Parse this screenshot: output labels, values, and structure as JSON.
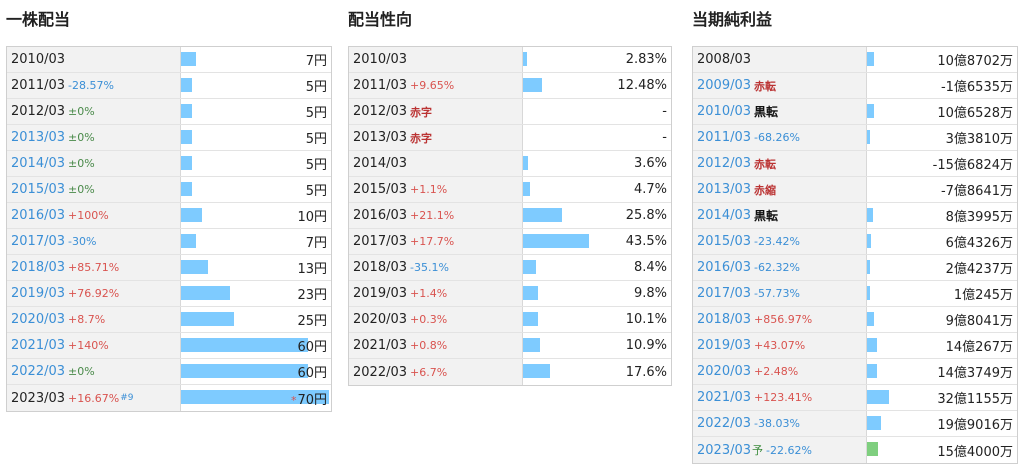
{
  "dividend": {
    "title": "一株配当",
    "max": 70,
    "rows": [
      {
        "year": "2010/03",
        "change": "",
        "dir": "",
        "value": "7円",
        "num": 7
      },
      {
        "year": "2011/03",
        "change": "-28.57%",
        "dir": "down",
        "value": "5円",
        "num": 5
      },
      {
        "year": "2012/03",
        "change": "±0%",
        "dir": "flat",
        "value": "5円",
        "num": 5
      },
      {
        "year": "2013/03",
        "change": "±0%",
        "dir": "flat",
        "value": "5円",
        "num": 5
      },
      {
        "year": "2014/03",
        "change": "±0%",
        "dir": "flat",
        "value": "5円",
        "num": 5
      },
      {
        "year": "2015/03",
        "change": "±0%",
        "dir": "flat",
        "value": "5円",
        "num": 5
      },
      {
        "year": "2016/03",
        "change": "+100%",
        "dir": "up",
        "value": "10円",
        "num": 10
      },
      {
        "year": "2017/03",
        "change": "-30%",
        "dir": "down",
        "value": "7円",
        "num": 7
      },
      {
        "year": "2018/03",
        "change": "+85.71%",
        "dir": "up",
        "value": "13円",
        "num": 13
      },
      {
        "year": "2019/03",
        "change": "+76.92%",
        "dir": "up",
        "value": "23円",
        "num": 23
      },
      {
        "year": "2020/03",
        "change": "+8.7%",
        "dir": "up",
        "value": "25円",
        "num": 25
      },
      {
        "year": "2021/03",
        "change": "+140%",
        "dir": "up",
        "value": "60円",
        "num": 60
      },
      {
        "year": "2022/03",
        "change": "±0%",
        "dir": "flat",
        "value": "60円",
        "num": 60
      },
      {
        "year": "2023/03",
        "change": "+16.67%",
        "dir": "up",
        "note": "#9",
        "star": "*",
        "value": "70円",
        "num": 70
      }
    ]
  },
  "payout": {
    "title": "配当性向",
    "max": 43.5,
    "rows": [
      {
        "year": "2010/03",
        "change": "",
        "dir": "",
        "value": "2.83%",
        "num": 2.83
      },
      {
        "year": "2011/03",
        "change": "+9.65%",
        "dir": "up",
        "value": "12.48%",
        "num": 12.48
      },
      {
        "year": "2012/03",
        "tag": "赤字",
        "tagColor": "red",
        "value": "-",
        "num": 0
      },
      {
        "year": "2013/03",
        "tag": "赤字",
        "tagColor": "red",
        "value": "-",
        "num": 0
      },
      {
        "year": "2014/03",
        "change": "",
        "dir": "",
        "value": "3.6%",
        "num": 3.6
      },
      {
        "year": "2015/03",
        "change": "+1.1%",
        "dir": "up",
        "value": "4.7%",
        "num": 4.7
      },
      {
        "year": "2016/03",
        "change": "+21.1%",
        "dir": "up",
        "value": "25.8%",
        "num": 25.8
      },
      {
        "year": "2017/03",
        "change": "+17.7%",
        "dir": "up",
        "value": "43.5%",
        "num": 43.5
      },
      {
        "year": "2018/03",
        "change": "-35.1%",
        "dir": "down",
        "value": "8.4%",
        "num": 8.4
      },
      {
        "year": "2019/03",
        "change": "+1.4%",
        "dir": "up",
        "value": "9.8%",
        "num": 9.8
      },
      {
        "year": "2020/03",
        "change": "+0.3%",
        "dir": "up",
        "value": "10.1%",
        "num": 10.1
      },
      {
        "year": "2021/03",
        "change": "+0.8%",
        "dir": "up",
        "value": "10.9%",
        "num": 10.9
      },
      {
        "year": "2022/03",
        "change": "+6.7%",
        "dir": "up",
        "value": "17.6%",
        "num": 17.6
      }
    ]
  },
  "net_income": {
    "title": "当期純利益",
    "max": 320000,
    "rows": [
      {
        "year": "2008/03",
        "blue": false,
        "value": "10億8702万",
        "num": 108702
      },
      {
        "year": "2009/03",
        "blue": true,
        "tag": "赤転",
        "tagColor": "red",
        "value": "-1億6535万",
        "num": 0
      },
      {
        "year": "2010/03",
        "blue": true,
        "tag": "黒転",
        "tagColor": "black",
        "value": "10億6528万",
        "num": 106528
      },
      {
        "year": "2011/03",
        "blue": true,
        "change": "-68.26%",
        "dir": "down",
        "value": "3億3810万",
        "num": 33810
      },
      {
        "year": "2012/03",
        "blue": true,
        "tag": "赤転",
        "tagColor": "red",
        "value": "-15億6824万",
        "num": 0
      },
      {
        "year": "2013/03",
        "blue": true,
        "tag": "赤縮",
        "tagColor": "red",
        "value": "-7億8641万",
        "num": 0
      },
      {
        "year": "2014/03",
        "blue": true,
        "tag": "黒転",
        "tagColor": "black",
        "value": "8億3995万",
        "num": 83995
      },
      {
        "year": "2015/03",
        "blue": true,
        "change": "-23.42%",
        "dir": "down",
        "value": "6億4326万",
        "num": 64326
      },
      {
        "year": "2016/03",
        "blue": true,
        "change": "-62.32%",
        "dir": "down",
        "value": "2億4237万",
        "num": 24237
      },
      {
        "year": "2017/03",
        "blue": true,
        "change": "-57.73%",
        "dir": "down",
        "value": "1億245万",
        "num": 10245
      },
      {
        "year": "2018/03",
        "blue": true,
        "change": "+856.97%",
        "dir": "up",
        "value": "9億8041万",
        "num": 98041
      },
      {
        "year": "2019/03",
        "blue": true,
        "change": "+43.07%",
        "dir": "up",
        "value": "14億267万",
        "num": 140267
      },
      {
        "year": "2020/03",
        "blue": true,
        "change": "+2.48%",
        "dir": "up",
        "value": "14億3749万",
        "num": 143749
      },
      {
        "year": "2021/03",
        "blue": true,
        "change": "+123.41%",
        "dir": "up",
        "value": "32億1155万",
        "num": 321155
      },
      {
        "year": "2022/03",
        "blue": true,
        "change": "-38.03%",
        "dir": "down",
        "value": "19億9016万",
        "num": 199016
      },
      {
        "year": "2023/03",
        "blue": true,
        "forecast": "予",
        "change": "-22.62%",
        "dir": "down",
        "value": "15億4000万",
        "num": 154000,
        "green": true
      }
    ]
  }
}
